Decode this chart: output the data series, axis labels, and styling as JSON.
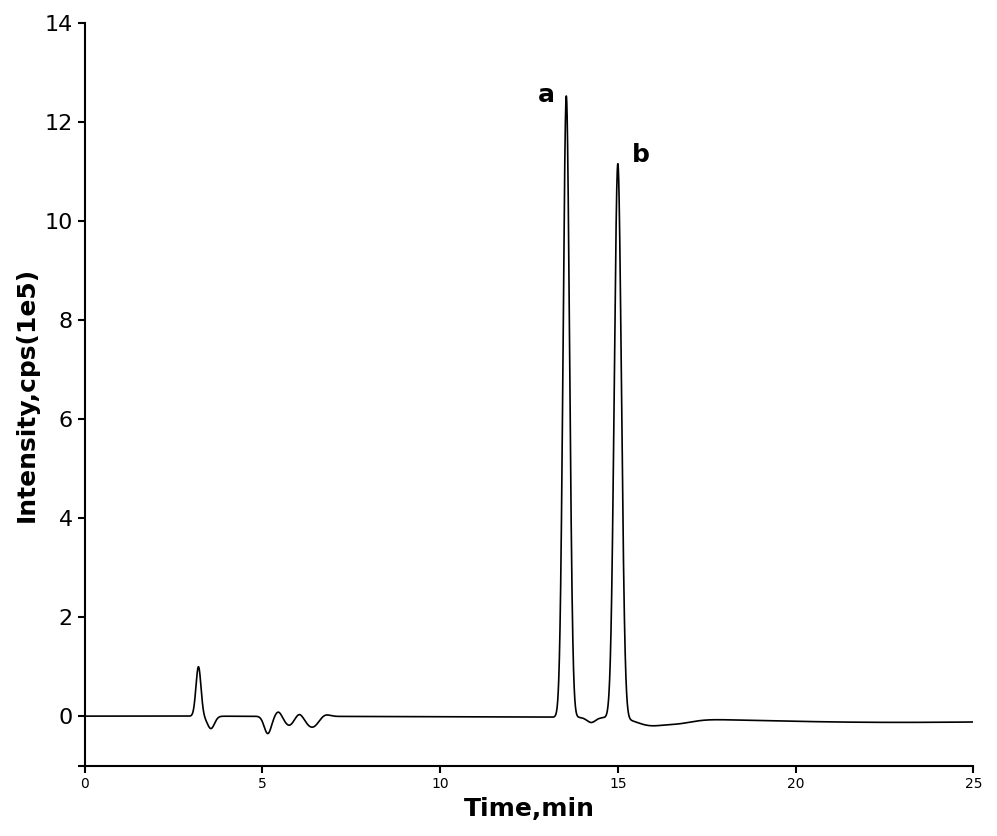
{
  "title": "",
  "xlabel": "Time,min",
  "ylabel": "Intensity,cps(1e5)",
  "xlim": [
    0,
    25
  ],
  "ylim": [
    -1,
    14
  ],
  "yticks": [
    -1,
    0,
    2,
    4,
    6,
    8,
    10,
    12,
    14
  ],
  "ytick_labels": [
    "",
    "0",
    "2",
    "4",
    "6",
    "8",
    "10",
    "12",
    "14"
  ],
  "xticks": [
    0,
    5,
    10,
    15,
    20,
    25
  ],
  "line_color": "#000000",
  "background_color": "#ffffff",
  "peak_a_time": 13.55,
  "peak_a_height": 12.55,
  "peak_b_time": 15.0,
  "peak_b_height": 11.2,
  "peak_a_label": "a",
  "peak_b_label": "b",
  "label_fontsize": 18,
  "axis_fontsize": 18,
  "tick_fontsize": 16
}
